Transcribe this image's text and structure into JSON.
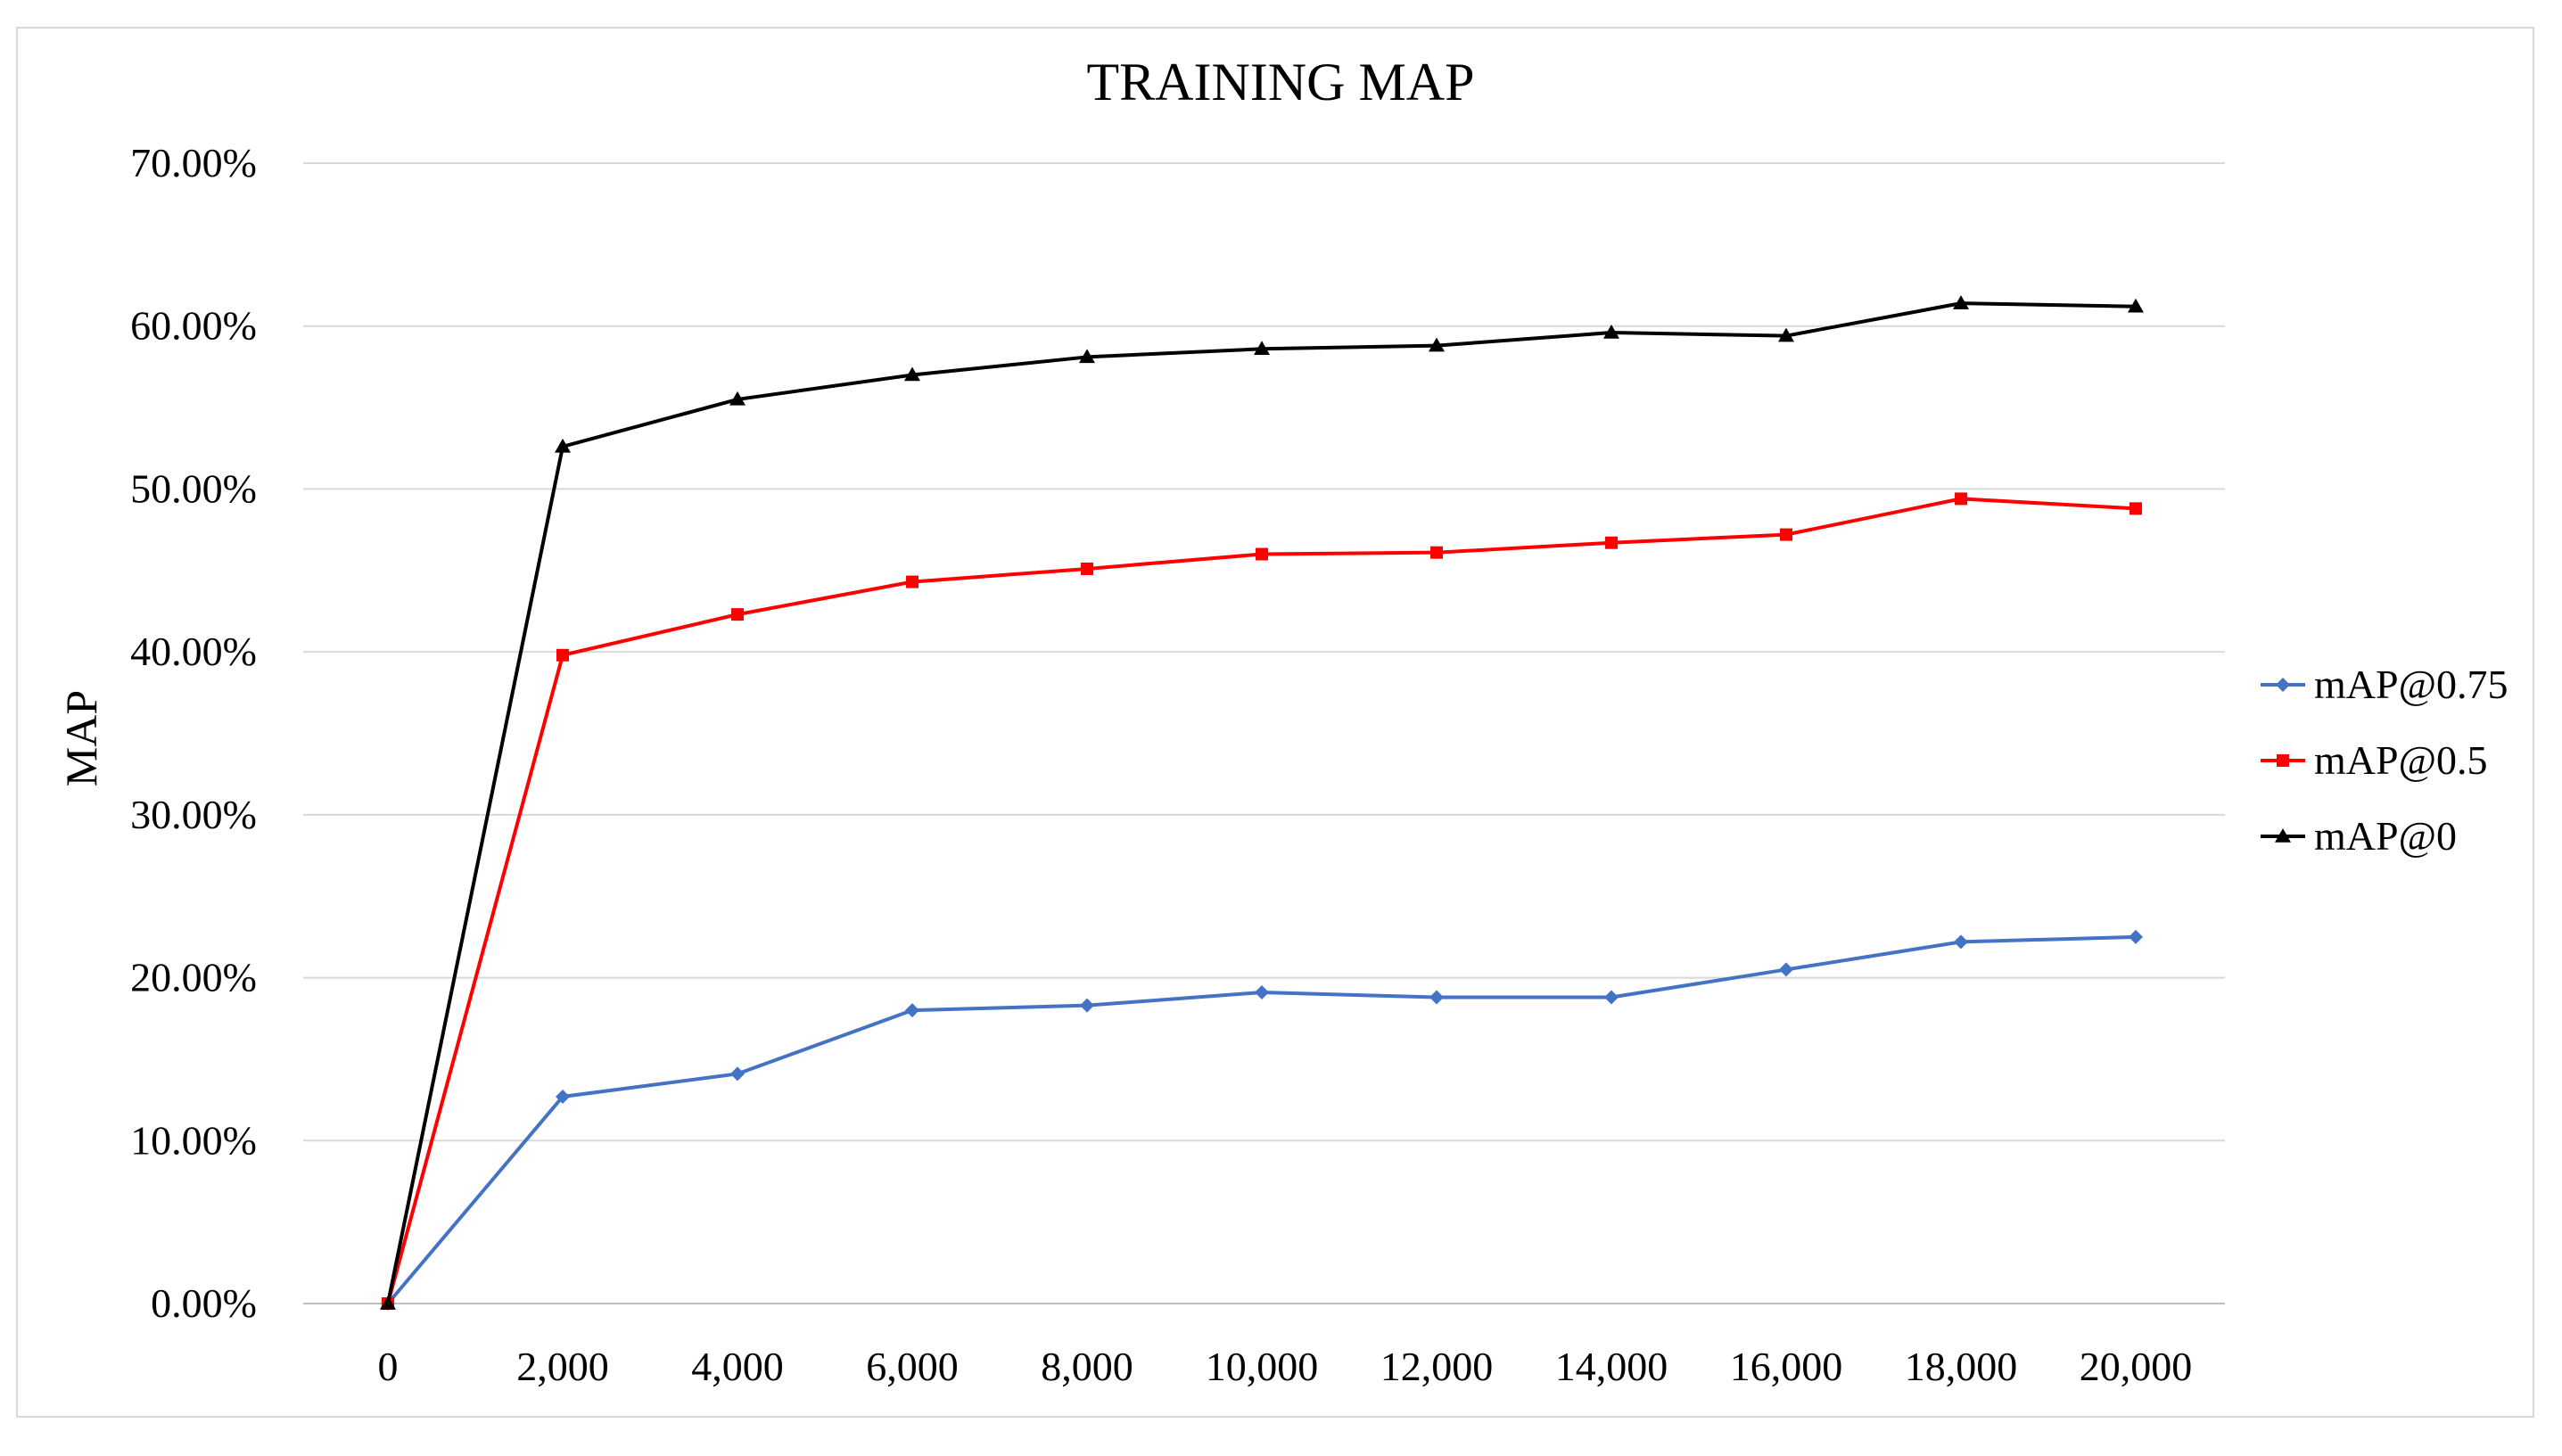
{
  "chart_data": {
    "type": "line",
    "title": "TRAINING MAP",
    "xlabel": "",
    "ylabel": "MAP",
    "x": [
      0,
      2000,
      4000,
      6000,
      8000,
      10000,
      12000,
      14000,
      16000,
      18000,
      20000
    ],
    "x_tick_labels": [
      "0",
      "2,000",
      "4,000",
      "6,000",
      "8,000",
      "10,000",
      "12,000",
      "14,000",
      "16,000",
      "18,000",
      "20,000"
    ],
    "y_tick_labels": [
      "0.00%",
      "10.00%",
      "20.00%",
      "30.00%",
      "40.00%",
      "50.00%",
      "60.00%",
      "70.00%"
    ],
    "ylim": [
      0,
      70
    ],
    "grid": "horizontal",
    "legend_position": "right",
    "series": [
      {
        "name": "mAP@0.75",
        "color": "#4472c4",
        "marker": "diamond",
        "values": [
          0.0,
          12.7,
          14.1,
          18.0,
          18.3,
          19.1,
          18.8,
          18.8,
          20.5,
          22.2,
          22.5
        ]
      },
      {
        "name": "mAP@0.5",
        "color": "#ff0000",
        "marker": "square",
        "values": [
          0.0,
          39.8,
          42.3,
          44.3,
          45.1,
          46.0,
          46.1,
          46.7,
          47.2,
          49.4,
          48.8
        ]
      },
      {
        "name": "mAP@0",
        "color": "#000000",
        "marker": "triangle",
        "values": [
          0.0,
          52.6,
          55.5,
          57.0,
          58.1,
          58.6,
          58.8,
          59.6,
          59.4,
          61.4,
          61.2
        ]
      }
    ]
  }
}
